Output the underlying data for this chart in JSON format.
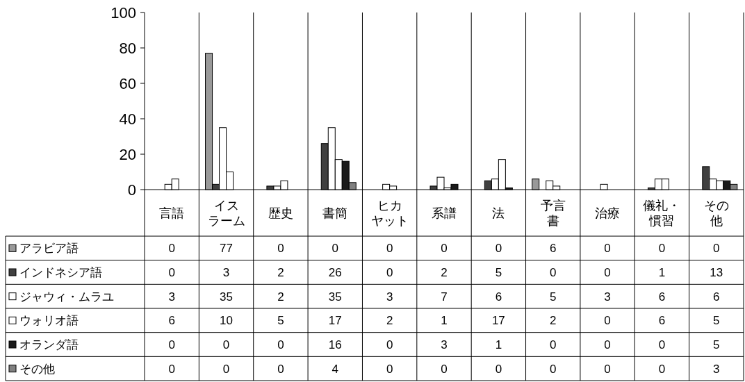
{
  "chart_data": {
    "type": "bar",
    "categories": [
      "言語",
      "イスラーム",
      "歴史",
      "書簡",
      "ヒカヤット",
      "系譜",
      "法",
      "予言書",
      "治療",
      "儀礼・慣習",
      "その他"
    ],
    "series": [
      {
        "name": "アラビア語",
        "color": "#999999",
        "values": [
          0,
          77,
          0,
          0,
          0,
          0,
          0,
          6,
          0,
          0,
          0
        ]
      },
      {
        "name": "インドネシア語",
        "color": "#404040",
        "values": [
          0,
          3,
          2,
          26,
          0,
          2,
          5,
          0,
          0,
          1,
          13
        ]
      },
      {
        "name": "ジャウィ・ムラユ",
        "color": "#ffffff",
        "values": [
          3,
          35,
          2,
          35,
          3,
          7,
          6,
          5,
          3,
          6,
          6
        ]
      },
      {
        "name": "ウォリオ語",
        "color": "#ffffff",
        "values": [
          6,
          10,
          5,
          17,
          2,
          1,
          17,
          2,
          0,
          6,
          5
        ]
      },
      {
        "name": "オランダ語",
        "color": "#1a1a1a",
        "values": [
          0,
          0,
          0,
          16,
          0,
          3,
          1,
          0,
          0,
          0,
          5
        ]
      },
      {
        "name": "その他",
        "color": "#808080",
        "values": [
          0,
          0,
          0,
          4,
          0,
          0,
          0,
          0,
          0,
          0,
          3
        ]
      }
    ],
    "ylim": [
      0,
      100
    ],
    "yticks": [
      0,
      20,
      40,
      60,
      80,
      100
    ],
    "data_labels": true,
    "legend": "bottom"
  }
}
